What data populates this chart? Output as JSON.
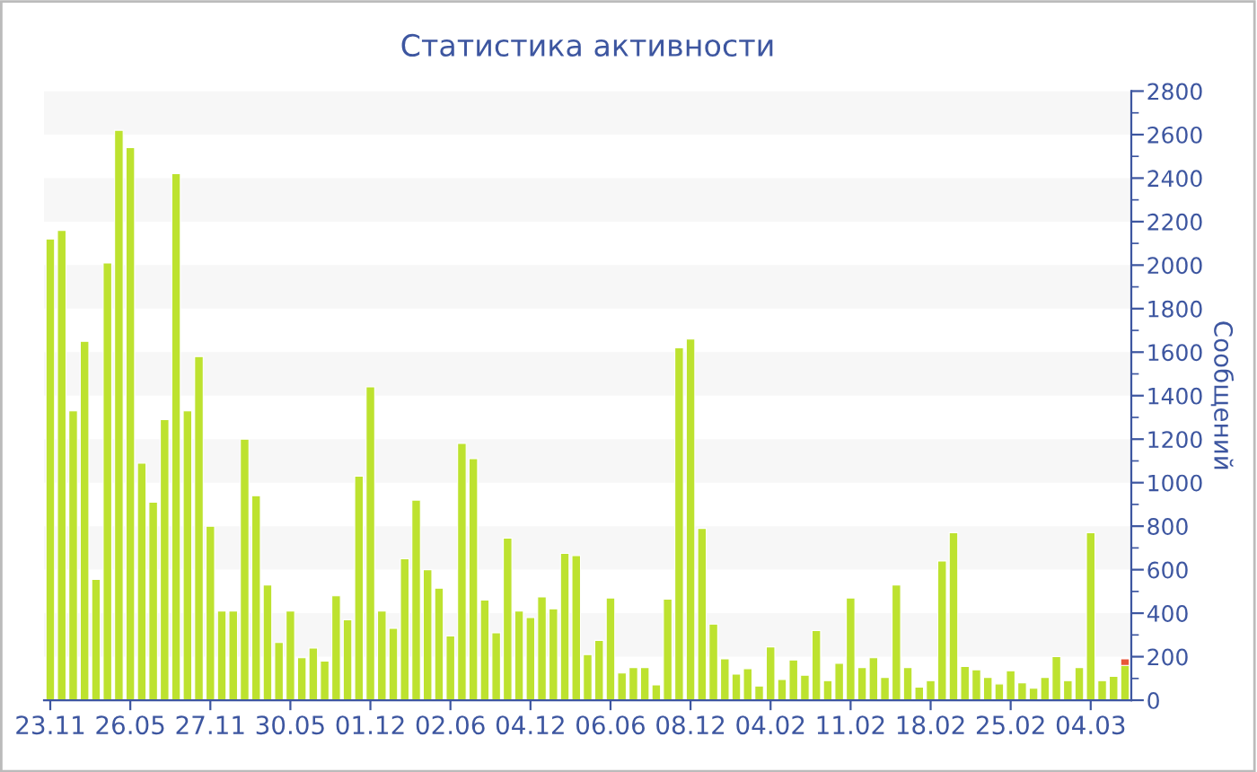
{
  "chart_data": {
    "type": "bar",
    "title": "Статистика активности",
    "ylabel": "Сообщений",
    "stacked": true,
    "categories": [
      "23.11",
      null,
      null,
      null,
      null,
      null,
      null,
      "26.05",
      null,
      null,
      null,
      null,
      null,
      null,
      "27.11",
      null,
      null,
      null,
      null,
      null,
      null,
      "30.05",
      null,
      null,
      null,
      null,
      null,
      null,
      "01.12",
      null,
      null,
      null,
      null,
      null,
      null,
      "02.06",
      null,
      null,
      null,
      null,
      null,
      null,
      "04.12",
      null,
      null,
      null,
      null,
      null,
      null,
      "06.06",
      null,
      null,
      null,
      null,
      null,
      null,
      "08.12",
      null,
      null,
      null,
      null,
      null,
      null,
      "04.02",
      null,
      null,
      null,
      null,
      null,
      null,
      "11.02",
      null,
      null,
      null,
      null,
      null,
      null,
      "18.02",
      null,
      null,
      null,
      null,
      null,
      null,
      "25.02",
      null,
      null,
      null,
      null,
      null,
      null,
      "04.03",
      null,
      null,
      null
    ],
    "series": [
      {
        "color": "#bde22f",
        "values": [
          2120,
          2160,
          1330,
          1650,
          555,
          2010,
          2620,
          2540,
          1090,
          910,
          1290,
          2420,
          1330,
          1580,
          800,
          410,
          410,
          1200,
          940,
          530,
          265,
          410,
          195,
          240,
          180,
          480,
          370,
          1030,
          1440,
          410,
          330,
          650,
          920,
          600,
          515,
          295,
          1180,
          1110,
          460,
          310,
          745,
          410,
          380,
          475,
          420,
          675,
          665,
          210,
          275,
          470,
          125,
          150,
          150,
          70,
          465,
          1620,
          1660,
          790,
          350,
          190,
          120,
          145,
          65,
          245,
          95,
          185,
          115,
          320,
          90,
          170,
          470,
          150,
          195,
          105,
          530,
          150,
          60,
          90,
          640,
          770,
          155,
          140,
          105,
          75,
          135,
          80,
          55,
          105,
          200,
          90,
          150,
          770,
          90,
          110,
          160
        ]
      },
      {
        "color": "#e8553a",
        "values": [
          null,
          null,
          null,
          null,
          null,
          null,
          null,
          null,
          null,
          null,
          null,
          null,
          null,
          null,
          null,
          null,
          null,
          null,
          null,
          null,
          null,
          null,
          null,
          null,
          null,
          null,
          null,
          null,
          null,
          null,
          null,
          null,
          null,
          null,
          null,
          null,
          null,
          null,
          null,
          null,
          null,
          null,
          null,
          null,
          null,
          null,
          null,
          null,
          null,
          null,
          null,
          null,
          null,
          null,
          null,
          null,
          null,
          null,
          null,
          null,
          null,
          null,
          null,
          null,
          null,
          null,
          null,
          null,
          null,
          null,
          null,
          null,
          null,
          null,
          null,
          null,
          null,
          null,
          null,
          null,
          null,
          null,
          null,
          null,
          null,
          null,
          null,
          null,
          null,
          null,
          null,
          null,
          null,
          null,
          30
        ]
      }
    ],
    "ylim": [
      0,
      2800
    ],
    "yticks": [
      0,
      {
        "value": 100,
        "label": null
      },
      200,
      {
        "value": 300,
        "label": null
      },
      400,
      {
        "value": 500,
        "label": null
      },
      600,
      {
        "value": 700,
        "label": null
      },
      800,
      {
        "value": 900,
        "label": null
      },
      1000,
      {
        "value": 1100,
        "label": null
      },
      1200,
      {
        "value": 1300,
        "label": null
      },
      1400,
      {
        "value": 1500,
        "label": null
      },
      1600,
      {
        "value": 1700,
        "label": null
      },
      1800,
      {
        "value": 1900,
        "label": null
      },
      2000,
      {
        "value": 2100,
        "label": null
      },
      2200,
      {
        "value": 2300,
        "label": null
      },
      2400,
      {
        "value": 2500,
        "label": null
      },
      2600,
      {
        "value": 2700,
        "label": null
      },
      2800
    ],
    "bands": [
      {
        "axis": "y",
        "from": 200,
        "to": 400,
        "color": "#f7f7f7"
      },
      {
        "axis": "y",
        "from": 600,
        "to": 800,
        "color": "#f7f7f7"
      },
      {
        "axis": "y",
        "from": 1000,
        "to": 1200,
        "color": "#f7f7f7"
      },
      {
        "axis": "y",
        "from": 1400,
        "to": 1600,
        "color": "#f7f7f7"
      },
      {
        "axis": "y",
        "from": 1800,
        "to": 2000,
        "color": "#f7f7f7"
      },
      {
        "axis": "y",
        "from": 2200,
        "to": 2400,
        "color": "#f7f7f7"
      },
      {
        "axis": "y",
        "from": 2600,
        "to": 2800,
        "color": "#f7f7f7"
      }
    ],
    "grid": false
  }
}
